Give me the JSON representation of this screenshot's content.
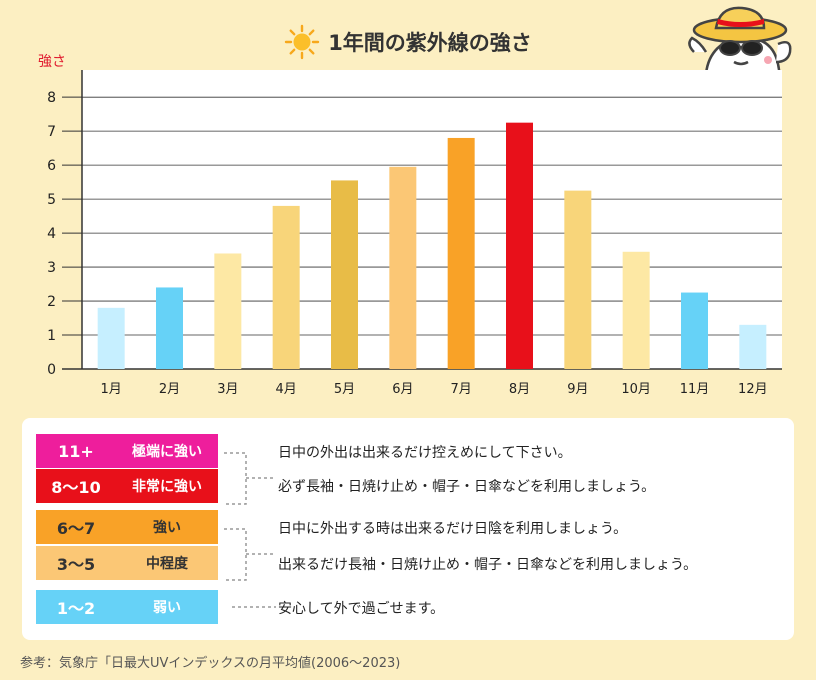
{
  "title": "1年間の紫外線の強さ",
  "chart_data": {
    "type": "bar",
    "ylabel": "強さ",
    "ylim": [
      0,
      8.8
    ],
    "yticks": [
      0,
      1,
      2,
      3,
      4,
      5,
      6,
      7,
      8
    ],
    "grid": true,
    "categories": [
      "1月",
      "2月",
      "3月",
      "4月",
      "5月",
      "6月",
      "7月",
      "8月",
      "9月",
      "10月",
      "11月",
      "12月"
    ],
    "values": [
      1.8,
      2.4,
      3.4,
      4.8,
      5.55,
      5.95,
      6.8,
      7.25,
      5.25,
      3.45,
      2.25,
      1.3
    ],
    "colors": [
      "#c6efff",
      "#66d2f7",
      "#fde8a4",
      "#f8d57a",
      "#e8bc47",
      "#fbc775",
      "#f9a227",
      "#e8101a",
      "#f8d57a",
      "#fde8a4",
      "#66d2f7",
      "#c6efff"
    ]
  },
  "legend": {
    "levels": [
      {
        "range": "11+",
        "label": "極端に強い",
        "color": "#ee1e9c"
      },
      {
        "range": "8〜10",
        "label": "非常に強い",
        "color": "#e8101a"
      },
      {
        "range": "6〜7",
        "label": "強い",
        "color": "#f9a227"
      },
      {
        "range": "3〜5",
        "label": "中程度",
        "color": "#fbc775"
      },
      {
        "range": "1〜2",
        "label": "弱い",
        "color": "#66d2f7"
      }
    ],
    "notes": [
      "日中の外出は出来るだけ控えめにして下さい。",
      "必ず長袖・日焼け止め・帽子・日傘などを利用しましょう。",
      "日中に外出する時は出来るだけ日陰を利用しましょう。",
      "出来るだけ長袖・日焼け止め・帽子・日傘などを利用しましょう。",
      "安心して外で過ごせます。"
    ]
  },
  "source": "参考：気象庁「日最大UVインデックスの月平均値(2006〜2023)"
}
